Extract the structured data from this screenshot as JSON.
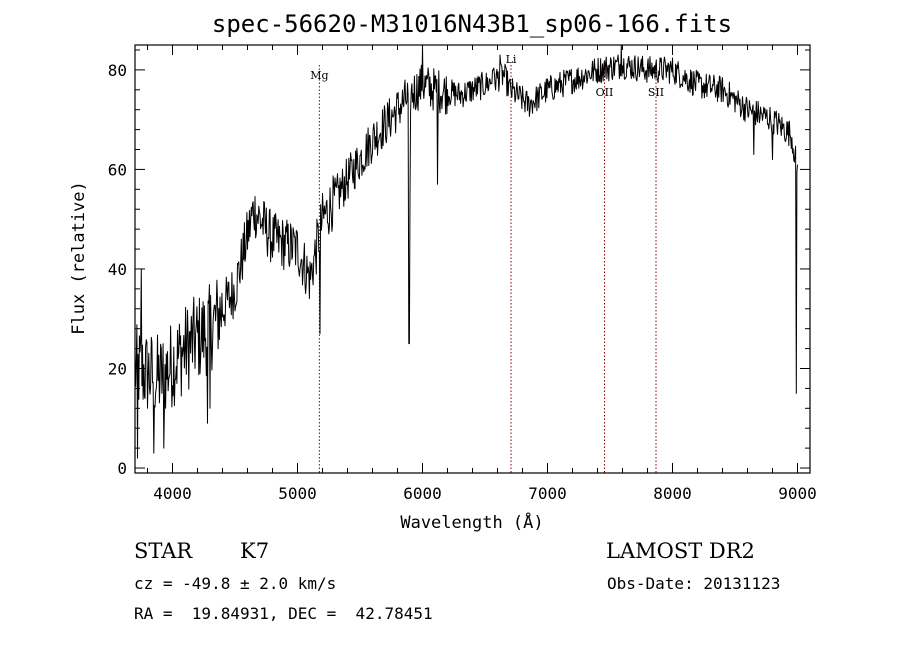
{
  "chart_data": {
    "type": "line",
    "title": "spec-56620-M31016N43B1_sp06-166.fits",
    "xlabel": "Wavelength (Å)",
    "ylabel": "Flux (relative)",
    "xlim": [
      3700,
      9100
    ],
    "ylim": [
      -1,
      85
    ],
    "x_ticks": [
      4000,
      5000,
      6000,
      7000,
      8000,
      9000
    ],
    "y_ticks": [
      0,
      20,
      40,
      60,
      80
    ],
    "series": [
      {
        "name": "flux",
        "continuum": [
          [
            3700,
            20
          ],
          [
            3900,
            18
          ],
          [
            4100,
            24
          ],
          [
            4300,
            28
          ],
          [
            4500,
            36
          ],
          [
            4650,
            52
          ],
          [
            4800,
            46
          ],
          [
            5000,
            44
          ],
          [
            5100,
            38
          ],
          [
            5200,
            50
          ],
          [
            5400,
            58
          ],
          [
            5600,
            66
          ],
          [
            5800,
            72
          ],
          [
            5900,
            75
          ],
          [
            6000,
            77
          ],
          [
            6100,
            76
          ],
          [
            6300,
            75
          ],
          [
            6500,
            77
          ],
          [
            6650,
            79
          ],
          [
            6700,
            76
          ],
          [
            6850,
            73
          ],
          [
            7000,
            76
          ],
          [
            7200,
            78
          ],
          [
            7400,
            80
          ],
          [
            7600,
            81
          ],
          [
            7800,
            80
          ],
          [
            8000,
            80
          ],
          [
            8200,
            77
          ],
          [
            8400,
            76
          ],
          [
            8600,
            72
          ],
          [
            8800,
            70
          ],
          [
            8950,
            67
          ],
          [
            9000,
            60
          ]
        ],
        "features": [
          {
            "x": 3720,
            "y": 2
          },
          {
            "x": 3750,
            "y": 40
          },
          {
            "x": 3850,
            "y": 3
          },
          {
            "x": 3930,
            "y": 4
          },
          {
            "x": 4280,
            "y": 9
          },
          {
            "x": 4300,
            "y": 12
          },
          {
            "x": 5180,
            "y": 27
          },
          {
            "x": 5893,
            "y": 25
          },
          {
            "x": 5900,
            "y": 55
          },
          {
            "x": 6000,
            "y": 85
          },
          {
            "x": 6120,
            "y": 57
          },
          {
            "x": 6563,
            "y": 80
          },
          {
            "x": 6620,
            "y": 83
          },
          {
            "x": 7590,
            "y": 85
          },
          {
            "x": 8650,
            "y": 63
          },
          {
            "x": 8800,
            "y": 62
          },
          {
            "x": 8990,
            "y": 15
          }
        ]
      }
    ],
    "reference_lines": [
      {
        "label": "Mg",
        "x": 5175
      },
      {
        "label": "Li",
        "x": 6708
      },
      {
        "label": "OII",
        "x": 7456
      },
      {
        "label": "SII",
        "x": 7868
      }
    ]
  },
  "info": {
    "object_class": "STAR",
    "subclass": "K7",
    "survey": "LAMOST DR2",
    "cz": "cz = -49.8 ± 2.0 km/s",
    "obs_date": "Obs-Date: 20131123",
    "coords": "RA =  19.84931, DEC =  42.78451"
  },
  "colors": {
    "spectrum": "#000000",
    "reference_line": "#8b0000"
  }
}
